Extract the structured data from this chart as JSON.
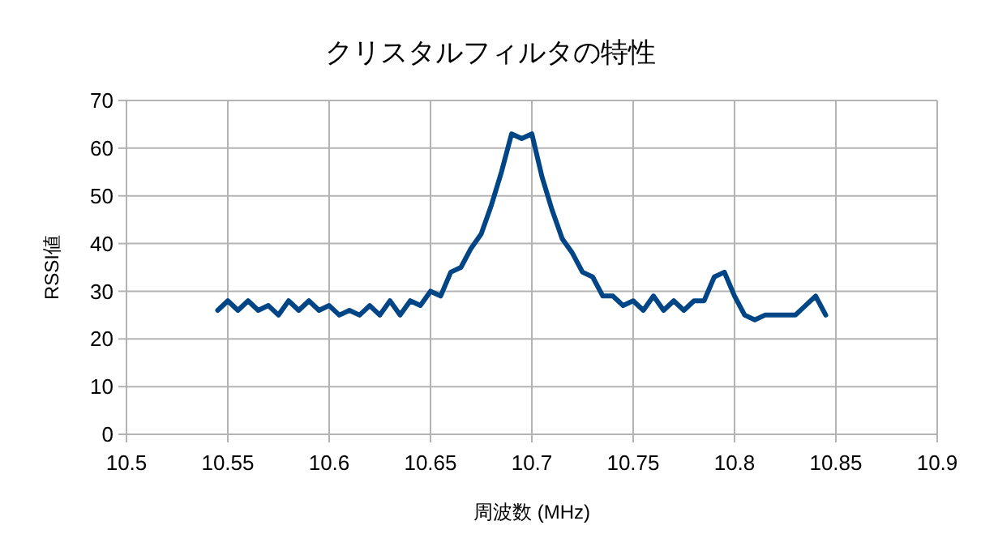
{
  "chart_data": {
    "type": "line",
    "title": "クリスタルフィルタの特性",
    "xlabel": "周波数 (MHz)",
    "ylabel": "RSSI値",
    "x": [
      10.545,
      10.55,
      10.555,
      10.56,
      10.565,
      10.57,
      10.575,
      10.58,
      10.585,
      10.59,
      10.595,
      10.6,
      10.605,
      10.61,
      10.615,
      10.62,
      10.625,
      10.63,
      10.635,
      10.64,
      10.645,
      10.65,
      10.655,
      10.66,
      10.665,
      10.67,
      10.675,
      10.68,
      10.685,
      10.69,
      10.695,
      10.7,
      10.705,
      10.71,
      10.715,
      10.72,
      10.725,
      10.73,
      10.735,
      10.74,
      10.745,
      10.75,
      10.755,
      10.76,
      10.765,
      10.77,
      10.775,
      10.78,
      10.785,
      10.79,
      10.795,
      10.8,
      10.805,
      10.81,
      10.815,
      10.82,
      10.825,
      10.83,
      10.835,
      10.84,
      10.845
    ],
    "series": [
      {
        "color": "#004586",
        "values": [
          26,
          28,
          26,
          28,
          26,
          27,
          25,
          28,
          26,
          28,
          26,
          27,
          25,
          26,
          25,
          27,
          25,
          28,
          25,
          28,
          27,
          30,
          29,
          34,
          35,
          39,
          42,
          48,
          55,
          63,
          62,
          63,
          54,
          47,
          41,
          38,
          34,
          33,
          29,
          29,
          27,
          28,
          26,
          29,
          26,
          28,
          26,
          28,
          28,
          33,
          34,
          29,
          25,
          24,
          25,
          25,
          25,
          25,
          27,
          29,
          25
        ]
      }
    ],
    "xlim": [
      10.5,
      10.9
    ],
    "xticks": [
      10.5,
      10.55,
      10.6,
      10.65,
      10.7,
      10.75,
      10.8,
      10.85,
      10.9
    ],
    "ylim": [
      0,
      70
    ],
    "yticks": [
      0,
      10,
      20,
      30,
      40,
      50,
      60,
      70
    ],
    "grid": true,
    "marker": "none",
    "line_style": "solid"
  }
}
